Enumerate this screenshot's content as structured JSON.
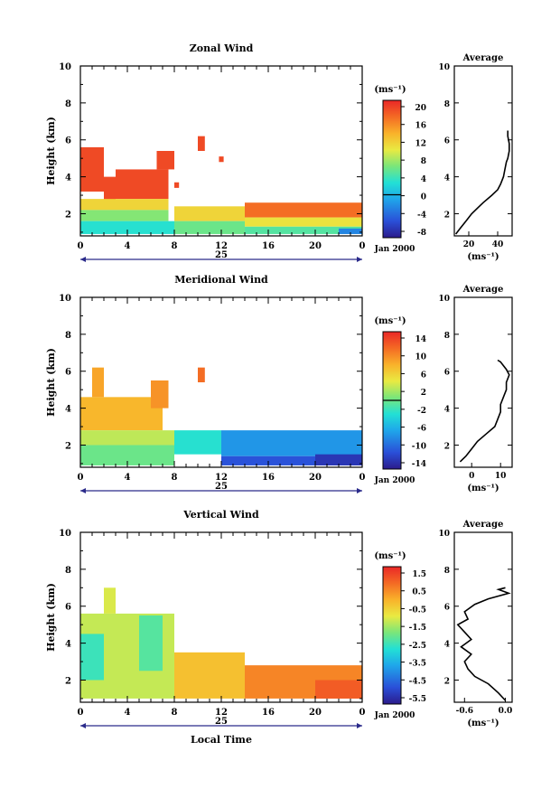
{
  "chart_data": [
    {
      "type": "heatmap",
      "title": "Zonal Wind",
      "ylabel": "Height (km)",
      "xlabel": "",
      "ylim": [
        0.8,
        10
      ],
      "xlim": [
        0,
        24
      ],
      "yticks": [
        "2",
        "4",
        "6",
        "8",
        "10"
      ],
      "xticks": [
        "0",
        "4",
        "8",
        "12",
        "16",
        "20",
        "0"
      ],
      "date_label": "25",
      "month_label": "Jan 2000",
      "colorbar": {
        "unit": "(ms⁻¹)",
        "ticks": [
          "20",
          "16",
          "12",
          "8",
          "4",
          "0",
          "-4",
          "-8"
        ],
        "range": [
          -10,
          22
        ],
        "zero_line": 0
      },
      "blocks": [
        {
          "t": [
            0,
            2
          ],
          "h": [
            3.2,
            5.6
          ],
          "v": 20
        },
        {
          "t": [
            2,
            3
          ],
          "h": [
            2.5,
            4.0
          ],
          "v": 20
        },
        {
          "t": [
            3,
            7.5
          ],
          "h": [
            2.8,
            4.4
          ],
          "v": 20
        },
        {
          "t": [
            6.5,
            8
          ],
          "h": [
            4.4,
            5.4
          ],
          "v": 20
        },
        {
          "t": [
            8,
            8.4
          ],
          "h": [
            3.4,
            3.7
          ],
          "v": 20
        },
        {
          "t": [
            10,
            10.6
          ],
          "h": [
            5.4,
            6.2
          ],
          "v": 20
        },
        {
          "t": [
            11.8,
            12.2
          ],
          "h": [
            4.8,
            5.1
          ],
          "v": 20
        },
        {
          "t": [
            0,
            7.5
          ],
          "h": [
            2.2,
            2.8
          ],
          "v": 12
        },
        {
          "t": [
            0,
            7.5
          ],
          "h": [
            1.6,
            2.2
          ],
          "v": 7
        },
        {
          "t": [
            0,
            8
          ],
          "h": [
            0.9,
            1.6
          ],
          "v": 3
        },
        {
          "t": [
            8,
            14
          ],
          "h": [
            1.6,
            2.4
          ],
          "v": 12
        },
        {
          "t": [
            8,
            14
          ],
          "h": [
            0.9,
            1.6
          ],
          "v": 6
        },
        {
          "t": [
            14,
            24
          ],
          "h": [
            1.8,
            2.6
          ],
          "v": 18
        },
        {
          "t": [
            14,
            24
          ],
          "h": [
            1.3,
            1.8
          ],
          "v": 11
        },
        {
          "t": [
            14,
            24
          ],
          "h": [
            0.9,
            1.3
          ],
          "v": 5
        },
        {
          "t": [
            22,
            24
          ],
          "h": [
            0.9,
            1.2
          ],
          "v": -3
        }
      ]
    },
    {
      "type": "heatmap",
      "title": "Meridional Wind",
      "ylabel": "Height (km)",
      "xlabel": "",
      "ylim": [
        0.8,
        10
      ],
      "xlim": [
        0,
        24
      ],
      "yticks": [
        "2",
        "4",
        "6",
        "8",
        "10"
      ],
      "xticks": [
        "0",
        "4",
        "8",
        "12",
        "16",
        "20",
        "0"
      ],
      "date_label": "25",
      "month_label": "Jan 2000",
      "colorbar": {
        "unit": "(ms⁻¹)",
        "ticks": [
          "14",
          "10",
          "6",
          "2",
          "-2",
          "-6",
          "-10",
          "-14"
        ],
        "range": [
          -16,
          16
        ],
        "zero_line": 0
      },
      "blocks": [
        {
          "t": [
            0,
            7
          ],
          "h": [
            2.8,
            4.6
          ],
          "v": 8
        },
        {
          "t": [
            1,
            2
          ],
          "h": [
            4.6,
            6.2
          ],
          "v": 9
        },
        {
          "t": [
            6,
            7.5
          ],
          "h": [
            4.0,
            5.5
          ],
          "v": 10
        },
        {
          "t": [
            10,
            10.6
          ],
          "h": [
            5.4,
            6.2
          ],
          "v": 12
        },
        {
          "t": [
            0,
            8
          ],
          "h": [
            2.0,
            2.8
          ],
          "v": 3
        },
        {
          "t": [
            0,
            8
          ],
          "h": [
            0.9,
            2.0
          ],
          "v": 0
        },
        {
          "t": [
            8,
            12
          ],
          "h": [
            1.5,
            2.8
          ],
          "v": -3
        },
        {
          "t": [
            12,
            24
          ],
          "h": [
            1.4,
            2.8
          ],
          "v": -8
        },
        {
          "t": [
            12,
            24
          ],
          "h": [
            0.9,
            1.4
          ],
          "v": -12
        },
        {
          "t": [
            20,
            24
          ],
          "h": [
            0.9,
            1.5
          ],
          "v": -14
        }
      ]
    },
    {
      "type": "heatmap",
      "title": "Vertical Wind",
      "ylabel": "Height (km)",
      "xlabel": "Local Time",
      "ylim": [
        0.8,
        10
      ],
      "xlim": [
        0,
        24
      ],
      "yticks": [
        "2",
        "4",
        "6",
        "8",
        "10"
      ],
      "xticks": [
        "0",
        "4",
        "8",
        "12",
        "16",
        "20",
        "0"
      ],
      "date_label": "25",
      "month_label": "Jan 2000",
      "colorbar": {
        "unit": "(ms⁻¹)",
        "ticks": [
          "1.5",
          "0.5",
          "-0.5",
          "-1.5",
          "-2.5",
          "-3.5",
          "-4.5",
          "-5.5"
        ],
        "range": [
          -6.5,
          2.0
        ]
      },
      "blocks": [
        {
          "t": [
            0,
            8
          ],
          "h": [
            1.0,
            5.6
          ],
          "v": -1.4
        },
        {
          "t": [
            2,
            3
          ],
          "h": [
            5.6,
            7.0
          ],
          "v": -1.2
        },
        {
          "t": [
            5,
            7
          ],
          "h": [
            2.5,
            5.5
          ],
          "v": -2.5
        },
        {
          "t": [
            0,
            2
          ],
          "h": [
            2.0,
            4.5
          ],
          "v": -2.8
        },
        {
          "t": [
            8,
            14
          ],
          "h": [
            1.0,
            3.5
          ],
          "v": -0.3
        },
        {
          "t": [
            14,
            24
          ],
          "h": [
            1.0,
            2.8
          ],
          "v": 0.6
        },
        {
          "t": [
            20,
            24
          ],
          "h": [
            1.0,
            2.0
          ],
          "v": 1.2
        }
      ]
    }
  ],
  "profiles": [
    {
      "title": "Average",
      "xlabel": "(ms⁻¹)",
      "xlim": [
        10,
        50
      ],
      "xticks": [
        "20",
        "40"
      ],
      "yticks": [
        "2",
        "4",
        "6",
        "8",
        "10"
      ],
      "x": [
        11,
        14,
        18,
        22,
        26,
        30,
        36,
        40,
        42,
        44,
        45,
        46,
        47,
        48,
        48,
        47,
        47
      ],
      "y": [
        0.9,
        1.2,
        1.6,
        2.0,
        2.3,
        2.6,
        3.0,
        3.3,
        3.6,
        4.0,
        4.4,
        4.8,
        5.0,
        5.4,
        5.8,
        6.2,
        6.5
      ]
    },
    {
      "title": "Average",
      "xlabel": "(ms⁻¹)",
      "xlim": [
        -6,
        14
      ],
      "xticks": [
        "0",
        "10"
      ],
      "yticks": [
        "2",
        "4",
        "6",
        "8",
        "10"
      ],
      "x": [
        -4,
        -2,
        0,
        2,
        5,
        8,
        9,
        10,
        10,
        11,
        12,
        12,
        13,
        12,
        11,
        10,
        9
      ],
      "y": [
        1.1,
        1.4,
        1.8,
        2.2,
        2.6,
        3.0,
        3.4,
        3.8,
        4.2,
        4.6,
        5.0,
        5.4,
        5.8,
        6.1,
        6.3,
        6.5,
        6.6
      ]
    },
    {
      "title": "Average",
      "xlabel": "(ms⁻¹)",
      "xlim": [
        -0.75,
        0.1
      ],
      "xticks": [
        "-0.6",
        "0.0"
      ],
      "yticks": [
        "2",
        "4",
        "6",
        "8",
        "10"
      ],
      "x": [
        0.0,
        -0.1,
        -0.25,
        -0.45,
        -0.55,
        -0.6,
        -0.5,
        -0.65,
        -0.5,
        -0.6,
        -0.7,
        -0.55,
        -0.6,
        -0.45,
        -0.25,
        0.05,
        -0.1,
        0.0
      ],
      "y": [
        0.9,
        1.3,
        1.8,
        2.2,
        2.6,
        3.0,
        3.4,
        3.8,
        4.2,
        4.6,
        5.0,
        5.3,
        5.7,
        6.1,
        6.4,
        6.7,
        6.9,
        7.0
      ]
    }
  ]
}
